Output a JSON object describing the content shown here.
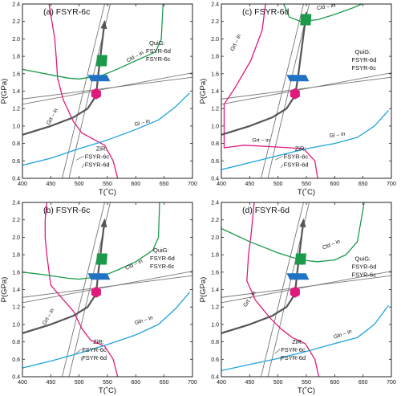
{
  "chart_data": [
    {
      "type": "line",
      "title": "(a) FSYR-6c",
      "xlabel": "T(˚C)",
      "ylabel": "P(GPa)",
      "xlim": [
        400,
        700
      ],
      "ylim": [
        0.4,
        2.4
      ],
      "xticks": [
        "400",
        "450",
        "500",
        "550",
        "600",
        "650",
        "700"
      ],
      "yticks": [
        "0.4",
        "0.6",
        "0.8",
        "1.0",
        "1.2",
        "1.4",
        "1.6",
        "1.8",
        "2.0",
        "2.2",
        "2.4"
      ],
      "series": [
        {
          "name": "Grt – in",
          "color": "#e0197d",
          "x": [
            447,
            452,
            457,
            460,
            462,
            472,
            490,
            505,
            525,
            545,
            560,
            568
          ],
          "y": [
            2.4,
            2.2,
            2.0,
            1.75,
            1.55,
            1.3,
            1.05,
            0.92,
            0.85,
            0.78,
            0.6,
            0.4
          ]
        },
        {
          "name": "Cld – in",
          "color": "#1a9a4a",
          "x": [
            400,
            440,
            480,
            500,
            540,
            570,
            600,
            635,
            645,
            648
          ],
          "y": [
            1.65,
            1.6,
            1.55,
            1.54,
            1.58,
            1.66,
            1.75,
            1.85,
            2.0,
            2.4
          ]
        },
        {
          "name": "Gl – in",
          "color": "#1fa3dc",
          "x": [
            400,
            450,
            500,
            550,
            600,
            640,
            670,
            695
          ],
          "y": [
            0.55,
            0.63,
            0.74,
            0.84,
            0.96,
            1.07,
            1.22,
            1.38
          ]
        },
        {
          "name": "path",
          "color": "#555555",
          "x": [
            400,
            450,
            490,
            515,
            530,
            533,
            545
          ],
          "y": [
            0.9,
            1.0,
            1.1,
            1.2,
            1.35,
            1.55,
            2.2
          ]
        }
      ],
      "reaction_lines": {
        "QuiG": {
          "FSYR-6d": {
            "x": [
              400,
              700
            ],
            "y": [
              1.25,
              1.61
            ]
          },
          "FSYR-6c": {
            "x": [
              400,
              700
            ],
            "y": [
              1.31,
              1.56
            ]
          }
        },
        "ZiR": {
          "FSYR-6c": {
            "x": [
              470,
              545
            ],
            "y": [
              0.4,
              2.4
            ]
          },
          "FSYR-6d": {
            "x": [
              482,
              555
            ],
            "y": [
              0.4,
              2.4
            ]
          }
        }
      },
      "markers": [
        {
          "shape": "hexagon",
          "color": "#e0197d",
          "x": 530,
          "y": 1.37
        },
        {
          "shape": "parallelogram",
          "color": "#1f73c2",
          "x": 535,
          "y": 1.55
        },
        {
          "shape": "square",
          "color": "#1a9a4a",
          "x": 540,
          "y": 1.75
        }
      ],
      "labels": {
        "grt": "Grt – in",
        "cld": "Cld – in",
        "gl": "Gl – in",
        "quig": "QuiG:",
        "quig_a": "FSYR-6d",
        "quig_b": "FSYR-6c",
        "zir": "ZiR:",
        "zir_a": "FSYR-6c",
        "zir_b": "FSYR-6d"
      }
    },
    {
      "type": "line",
      "title": "(c) FSYR-6d",
      "xlabel": "T(˚C)",
      "ylabel": "P(GPa)",
      "xlim": [
        400,
        700
      ],
      "ylim": [
        0.4,
        2.4
      ],
      "xticks": [
        "400",
        "450",
        "500",
        "550",
        "600",
        "650",
        "700"
      ],
      "yticks": [
        "0.4",
        "0.6",
        "0.8",
        "1.0",
        "1.2",
        "1.4",
        "1.6",
        "1.8",
        "2.0",
        "2.2",
        "2.4"
      ],
      "series": [
        {
          "name": "Grt – in",
          "color": "#e0197d",
          "x": [
            478,
            472,
            452,
            425,
            405,
            405,
            440,
            495,
            545,
            565,
            570
          ],
          "y": [
            2.4,
            2.1,
            1.75,
            1.45,
            1.25,
            0.75,
            0.78,
            0.76,
            0.74,
            0.6,
            0.4
          ]
        },
        {
          "name": "Cld – in",
          "color": "#1a9a4a",
          "x": [
            510,
            520,
            540,
            570,
            600,
            630,
            648
          ],
          "y": [
            2.4,
            2.25,
            2.2,
            2.22,
            2.28,
            2.35,
            2.4
          ]
        },
        {
          "name": "Gl – in",
          "color": "#1fa3dc",
          "x": [
            400,
            450,
            500,
            550,
            600,
            640,
            670,
            695
          ],
          "y": [
            0.5,
            0.58,
            0.66,
            0.74,
            0.8,
            0.87,
            1.0,
            1.18
          ]
        },
        {
          "name": "path",
          "color": "#555555",
          "x": [
            400,
            450,
            490,
            515,
            530,
            535,
            550
          ],
          "y": [
            0.9,
            1.0,
            1.1,
            1.2,
            1.35,
            1.55,
            2.3
          ]
        }
      ],
      "reaction_lines": {
        "QuiG": {
          "FSYR-6d": {
            "x": [
              400,
              700
            ],
            "y": [
              1.25,
              1.61
            ]
          },
          "FSYR-6c": {
            "x": [
              400,
              700
            ],
            "y": [
              1.31,
              1.56
            ]
          }
        },
        "ZiR": {
          "FSYR-6c": {
            "x": [
              470,
              545
            ],
            "y": [
              0.4,
              2.4
            ]
          },
          "FSYR-6d": {
            "x": [
              482,
              555
            ],
            "y": [
              0.4,
              2.4
            ]
          }
        }
      },
      "markers": [
        {
          "shape": "hexagon",
          "color": "#e0197d",
          "x": 530,
          "y": 1.37
        },
        {
          "shape": "parallelogram",
          "color": "#1f73c2",
          "x": 535,
          "y": 1.55
        },
        {
          "shape": "square",
          "color": "#1a9a4a",
          "x": 549,
          "y": 2.22
        }
      ],
      "labels": {
        "grt": "Grt – in",
        "cld": "Cld – in",
        "gl": "Gl – in",
        "grt2": "Grt – in",
        "quig": "QuiG:",
        "quig_a": "FSYR-6d",
        "quig_b": "FSYR-6c",
        "zir": "ZiR:",
        "zir_a": "FSYR-6c",
        "zir_b": "FSYR-6d"
      }
    },
    {
      "type": "line",
      "title": "(b) FSYR-6c",
      "xlabel": "T(˚C)",
      "ylabel": "P(GPa)",
      "xlim": [
        400,
        700
      ],
      "ylim": [
        0.4,
        2.4
      ],
      "xticks": [
        "400",
        "450",
        "500",
        "550",
        "600",
        "650",
        "700"
      ],
      "yticks": [
        "0.4",
        "0.6",
        "0.8",
        "1.0",
        "1.2",
        "1.4",
        "1.6",
        "1.8",
        "2.0",
        "2.2",
        "2.4"
      ],
      "series": [
        {
          "name": "Grt – in",
          "color": "#e0197d",
          "x": [
            443,
            440,
            440,
            443,
            450,
            470,
            490,
            505,
            520,
            545,
            560,
            568
          ],
          "y": [
            2.4,
            2.2,
            2.0,
            1.8,
            1.45,
            1.3,
            1.15,
            0.95,
            0.82,
            0.75,
            0.6,
            0.4
          ]
        },
        {
          "name": "Cld – in",
          "color": "#1a9a4a",
          "x": [
            400,
            440,
            480,
            500,
            540,
            570,
            600,
            630,
            640,
            642
          ],
          "y": [
            1.6,
            1.57,
            1.53,
            1.52,
            1.55,
            1.63,
            1.72,
            1.85,
            2.0,
            2.4
          ]
        },
        {
          "name": "Gln – in",
          "color": "#1fa3dc",
          "x": [
            400,
            450,
            500,
            550,
            600,
            640,
            670,
            695
          ],
          "y": [
            0.5,
            0.58,
            0.67,
            0.77,
            0.88,
            1.0,
            1.18,
            1.37
          ]
        },
        {
          "name": "path",
          "color": "#555555",
          "x": [
            400,
            450,
            490,
            515,
            530,
            533,
            545
          ],
          "y": [
            0.9,
            1.0,
            1.1,
            1.2,
            1.35,
            1.55,
            2.2
          ]
        }
      ],
      "reaction_lines": {
        "QuiG": {
          "FSYR-6d": {
            "x": [
              400,
              700
            ],
            "y": [
              1.25,
              1.61
            ]
          },
          "FSYR-6c": {
            "x": [
              400,
              700
            ],
            "y": [
              1.31,
              1.56
            ]
          }
        },
        "ZiR": {
          "FSYR-6c": {
            "x": [
              470,
              545
            ],
            "y": [
              0.4,
              2.4
            ]
          },
          "FSYR-6d": {
            "x": [
              482,
              555
            ],
            "y": [
              0.4,
              2.4
            ]
          }
        }
      },
      "markers": [
        {
          "shape": "hexagon",
          "color": "#e0197d",
          "x": 530,
          "y": 1.37
        },
        {
          "shape": "parallelogram",
          "color": "#1f73c2",
          "x": 535,
          "y": 1.55
        },
        {
          "shape": "square",
          "color": "#1a9a4a",
          "x": 540,
          "y": 1.75
        }
      ],
      "labels": {
        "grt": "Grt – in",
        "cld": "Cld – in",
        "gl": "Gln – in",
        "quig": "QuiG:",
        "quig_a": "FSYR-6d",
        "quig_b": "FSYR-6c",
        "zir": "ZiR:",
        "zir_a": "FSYR-6c",
        "zir_b": "FSYR-6d"
      }
    },
    {
      "type": "line",
      "title": "(d) FSYR-6d",
      "xlabel": "T(˚C)",
      "ylabel": "P(GPa)",
      "xlim": [
        400,
        700
      ],
      "ylim": [
        0.4,
        2.4
      ],
      "xticks": [
        "400",
        "450",
        "500",
        "550",
        "600",
        "650",
        "700"
      ],
      "yticks": [
        "0.4",
        "0.6",
        "0.8",
        "1.0",
        "1.2",
        "1.4",
        "1.6",
        "1.8",
        "2.0",
        "2.2",
        "2.4"
      ],
      "series": [
        {
          "name": "Grt – in",
          "color": "#e0197d",
          "x": [
            458,
            455,
            452,
            448,
            445,
            460,
            485,
            505,
            525,
            548,
            565,
            572
          ],
          "y": [
            2.4,
            2.2,
            2.0,
            1.8,
            1.5,
            1.28,
            1.08,
            0.95,
            0.85,
            0.78,
            0.6,
            0.4
          ]
        },
        {
          "name": "Cld – in",
          "color": "#1a9a4a",
          "x": [
            400,
            450,
            500,
            540,
            570,
            600,
            620,
            640,
            652
          ],
          "y": [
            2.1,
            1.95,
            1.82,
            1.74,
            1.72,
            1.74,
            1.8,
            1.95,
            2.4
          ]
        },
        {
          "name": "Gln – in",
          "color": "#1fa3dc",
          "x": [
            400,
            450,
            500,
            550,
            600,
            640,
            670,
            695
          ],
          "y": [
            0.47,
            0.54,
            0.61,
            0.69,
            0.78,
            0.85,
            1.0,
            1.22
          ]
        },
        {
          "name": "path",
          "color": "#555555",
          "x": [
            400,
            450,
            490,
            515,
            530,
            533,
            545
          ],
          "y": [
            0.9,
            1.0,
            1.1,
            1.2,
            1.35,
            1.55,
            2.2
          ]
        }
      ],
      "reaction_lines": {
        "QuiG": {
          "FSYR-6d": {
            "x": [
              400,
              700
            ],
            "y": [
              1.25,
              1.61
            ]
          },
          "FSYR-6c": {
            "x": [
              400,
              700
            ],
            "y": [
              1.31,
              1.56
            ]
          }
        },
        "ZiR": {
          "FSYR-6c": {
            "x": [
              470,
              545
            ],
            "y": [
              0.4,
              2.4
            ]
          },
          "FSYR-6d": {
            "x": [
              482,
              555
            ],
            "y": [
              0.4,
              2.4
            ]
          }
        }
      },
      "markers": [
        {
          "shape": "hexagon",
          "color": "#e0197d",
          "x": 530,
          "y": 1.37
        },
        {
          "shape": "parallelogram",
          "color": "#1f73c2",
          "x": 535,
          "y": 1.55
        },
        {
          "shape": "square",
          "color": "#1a9a4a",
          "x": 540,
          "y": 1.75
        }
      ],
      "labels": {
        "grt": "Grt – in",
        "cld": "Cld – in",
        "gl": "Gln – in",
        "quig": "QuiG:",
        "quig_a": "FSYR-6d",
        "quig_b": "FSYR-6c",
        "zir": "ZiR:",
        "zir_a": "FSYR-6c",
        "zir_b": "FSYR-6d"
      }
    }
  ]
}
